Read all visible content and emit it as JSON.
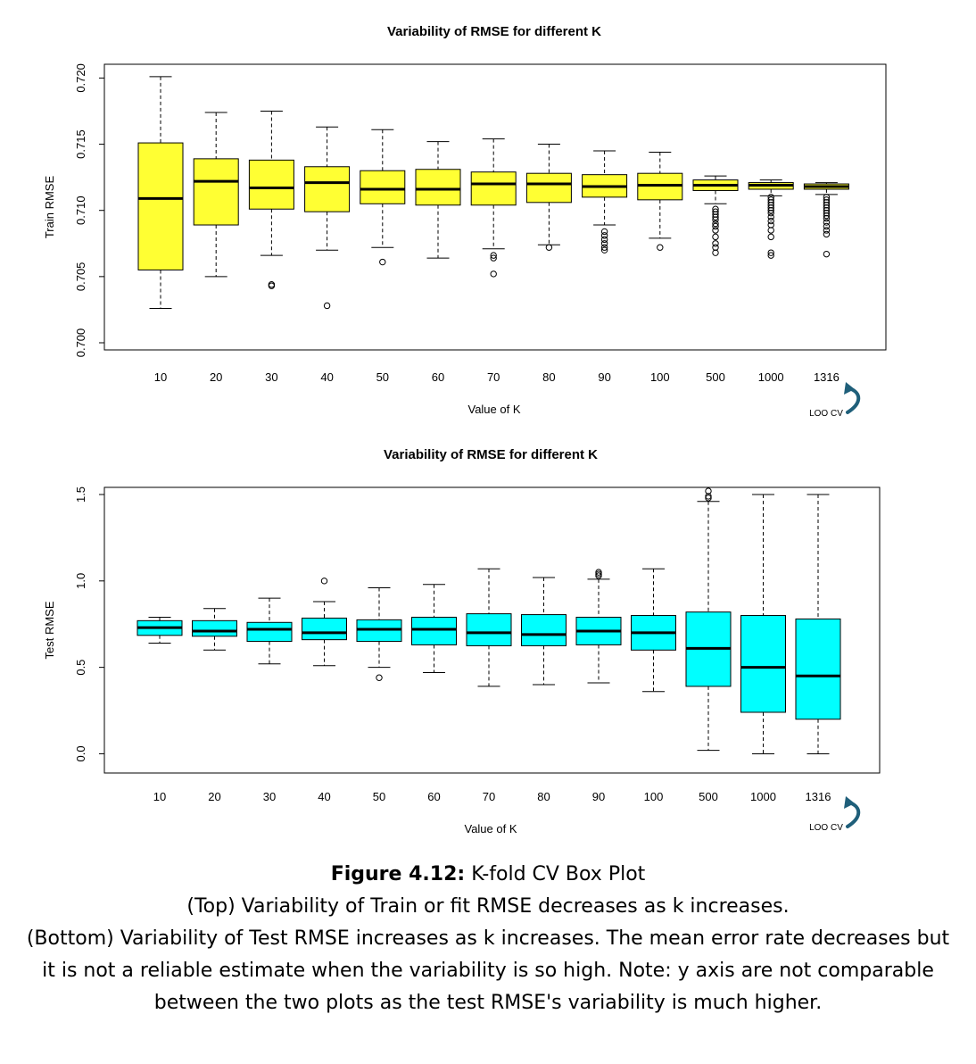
{
  "charts": [
    {
      "type": "box",
      "title": "Variability of RMSE for different K",
      "xlabel": "Value of K",
      "ylabel": "Train RMSE",
      "categories": [
        "10",
        "20",
        "30",
        "40",
        "50",
        "60",
        "70",
        "80",
        "90",
        "100",
        "500",
        "1000",
        "1316"
      ],
      "ylim": [
        0.7,
        0.7205
      ],
      "yticks": [
        0.7,
        0.705,
        0.71,
        0.715,
        0.72
      ],
      "ytick_labels": [
        "0.700",
        "0.705",
        "0.710",
        "0.715",
        "0.720"
      ],
      "fill": "#ffff33",
      "annotation": "LOO CV",
      "arrow_color": "#1f5f7a",
      "boxes": [
        {
          "min": 0.7026,
          "q1": 0.7055,
          "median": 0.7109,
          "q3": 0.7151,
          "max": 0.7201,
          "outliers": []
        },
        {
          "min": 0.705,
          "q1": 0.7089,
          "median": 0.7122,
          "q3": 0.7139,
          "max": 0.7174,
          "outliers": []
        },
        {
          "min": 0.7066,
          "q1": 0.7101,
          "median": 0.7117,
          "q3": 0.7138,
          "max": 0.7175,
          "outliers": [
            0.7043,
            0.7044
          ]
        },
        {
          "min": 0.707,
          "q1": 0.7099,
          "median": 0.7121,
          "q3": 0.7133,
          "max": 0.7163,
          "outliers": [
            0.7028
          ]
        },
        {
          "min": 0.7072,
          "q1": 0.7105,
          "median": 0.7116,
          "q3": 0.713,
          "max": 0.7161,
          "outliers": [
            0.7061
          ]
        },
        {
          "min": 0.7064,
          "q1": 0.7104,
          "median": 0.7116,
          "q3": 0.7131,
          "max": 0.7152,
          "outliers": []
        },
        {
          "min": 0.7071,
          "q1": 0.7104,
          "median": 0.712,
          "q3": 0.7129,
          "max": 0.7154,
          "outliers": [
            0.7064,
            0.7066,
            0.7052
          ]
        },
        {
          "min": 0.7074,
          "q1": 0.7106,
          "median": 0.712,
          "q3": 0.7128,
          "max": 0.715,
          "outliers": [
            0.7072
          ]
        },
        {
          "min": 0.7089,
          "q1": 0.711,
          "median": 0.7118,
          "q3": 0.7127,
          "max": 0.7145,
          "outliers": [
            0.7084,
            0.7081,
            0.7078,
            0.7075,
            0.7072,
            0.707
          ]
        },
        {
          "min": 0.7079,
          "q1": 0.7108,
          "median": 0.7119,
          "q3": 0.7128,
          "max": 0.7144,
          "outliers": [
            0.7072
          ]
        },
        {
          "min": 0.7105,
          "q1": 0.7115,
          "median": 0.7119,
          "q3": 0.7123,
          "max": 0.7126,
          "outliers": [
            0.7101,
            0.7099,
            0.7097,
            0.7095,
            0.7093,
            0.709,
            0.7088,
            0.7085,
            0.708,
            0.7075,
            0.7072,
            0.7068
          ]
        },
        {
          "min": 0.7111,
          "q1": 0.7116,
          "median": 0.7119,
          "q3": 0.7121,
          "max": 0.7123,
          "outliers": [
            0.711,
            0.7108,
            0.7106,
            0.7104,
            0.7102,
            0.71,
            0.7098,
            0.7095,
            0.7092,
            0.7089,
            0.7085,
            0.708,
            0.7068,
            0.7066
          ]
        },
        {
          "min": 0.7112,
          "q1": 0.7116,
          "median": 0.7118,
          "q3": 0.712,
          "max": 0.7121,
          "outliers": [
            0.711,
            0.7108,
            0.7106,
            0.7104,
            0.7102,
            0.71,
            0.7098,
            0.7096,
            0.7094,
            0.7091,
            0.7088,
            0.7085,
            0.7082,
            0.7067
          ]
        }
      ]
    },
    {
      "type": "box",
      "title": "Variability of RMSE for different K",
      "xlabel": "Value of K",
      "ylabel": "Test RMSE",
      "categories": [
        "10",
        "20",
        "30",
        "40",
        "50",
        "60",
        "70",
        "80",
        "90",
        "100",
        "500",
        "1000",
        "1316"
      ],
      "ylim": [
        -0.07,
        1.5
      ],
      "yticks": [
        0.0,
        0.5,
        1.0,
        1.5
      ],
      "ytick_labels": [
        "0.0",
        "0.5",
        "1.0",
        "1.5"
      ],
      "fill": "#00ffff",
      "annotation": "LOO CV",
      "arrow_color": "#1f5f7a",
      "boxes": [
        {
          "min": 0.64,
          "q1": 0.685,
          "median": 0.73,
          "q3": 0.77,
          "max": 0.79,
          "outliers": []
        },
        {
          "min": 0.6,
          "q1": 0.68,
          "median": 0.71,
          "q3": 0.77,
          "max": 0.84,
          "outliers": []
        },
        {
          "min": 0.52,
          "q1": 0.65,
          "median": 0.72,
          "q3": 0.76,
          "max": 0.9,
          "outliers": []
        },
        {
          "min": 0.51,
          "q1": 0.66,
          "median": 0.7,
          "q3": 0.785,
          "max": 0.88,
          "outliers": [
            1.0
          ]
        },
        {
          "min": 0.5,
          "q1": 0.65,
          "median": 0.72,
          "q3": 0.775,
          "max": 0.96,
          "outliers": [
            0.44
          ]
        },
        {
          "min": 0.47,
          "q1": 0.63,
          "median": 0.72,
          "q3": 0.79,
          "max": 0.98,
          "outliers": []
        },
        {
          "min": 0.39,
          "q1": 0.625,
          "median": 0.7,
          "q3": 0.81,
          "max": 1.07,
          "outliers": []
        },
        {
          "min": 0.4,
          "q1": 0.625,
          "median": 0.69,
          "q3": 0.805,
          "max": 1.02,
          "outliers": []
        },
        {
          "min": 0.41,
          "q1": 0.63,
          "median": 0.71,
          "q3": 0.79,
          "max": 1.01,
          "outliers": [
            1.03,
            1.04,
            1.05
          ]
        },
        {
          "min": 0.36,
          "q1": 0.6,
          "median": 0.7,
          "q3": 0.8,
          "max": 1.07,
          "outliers": []
        },
        {
          "min": 0.02,
          "q1": 0.39,
          "median": 0.61,
          "q3": 0.82,
          "max": 1.46,
          "outliers": [
            1.48,
            1.49,
            1.52
          ]
        },
        {
          "min": 0.0,
          "q1": 0.24,
          "median": 0.5,
          "q3": 0.8,
          "max": 1.5,
          "outliers": []
        },
        {
          "min": 0.0,
          "q1": 0.2,
          "median": 0.45,
          "q3": 0.78,
          "max": 1.5,
          "outliers": []
        }
      ]
    }
  ],
  "caption": {
    "label": "Figure 4.12:",
    "title": " K-fold CV Box Plot",
    "lines": [
      "(Top) Variability of Train or fit RMSE decreases as k increases.",
      "(Bottom) Variability of Test RMSE increases as k increases. The mean error rate decreases but it is not a reliable estimate when the variability is so high. Note: y axis are not comparable between the two plots as the test RMSE's variability is much higher."
    ]
  }
}
